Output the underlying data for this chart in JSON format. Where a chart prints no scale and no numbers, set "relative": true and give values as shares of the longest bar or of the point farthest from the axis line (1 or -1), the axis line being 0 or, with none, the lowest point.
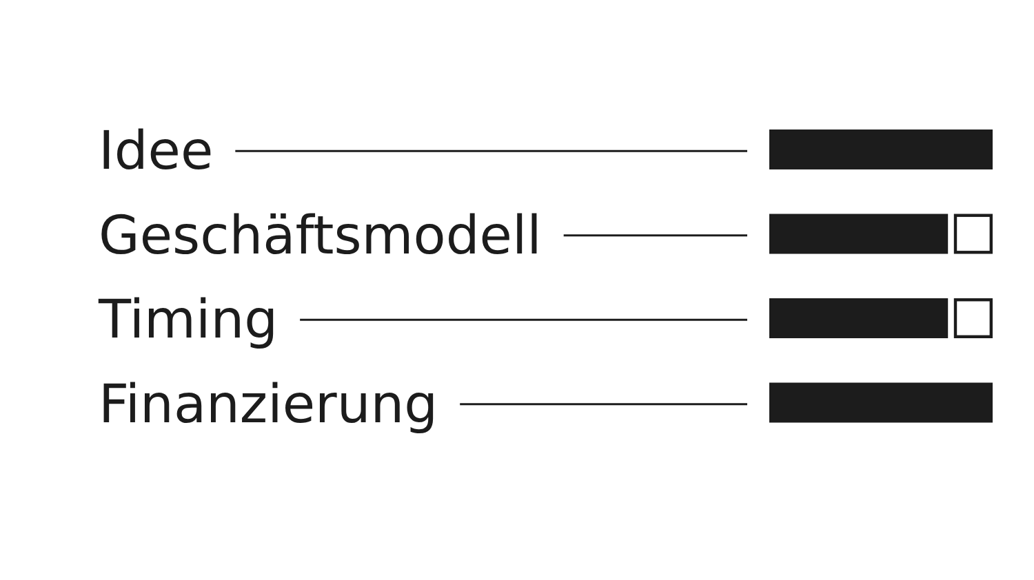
{
  "chart_data": {
    "type": "bar",
    "orientation": "horizontal",
    "relative": true,
    "categories": [
      "Idee",
      "Geschäftsmodell",
      "Timing",
      "Finanzierung"
    ],
    "values": [
      1,
      0.8,
      0.8,
      1
    ],
    "color": "#1c1c1c"
  }
}
